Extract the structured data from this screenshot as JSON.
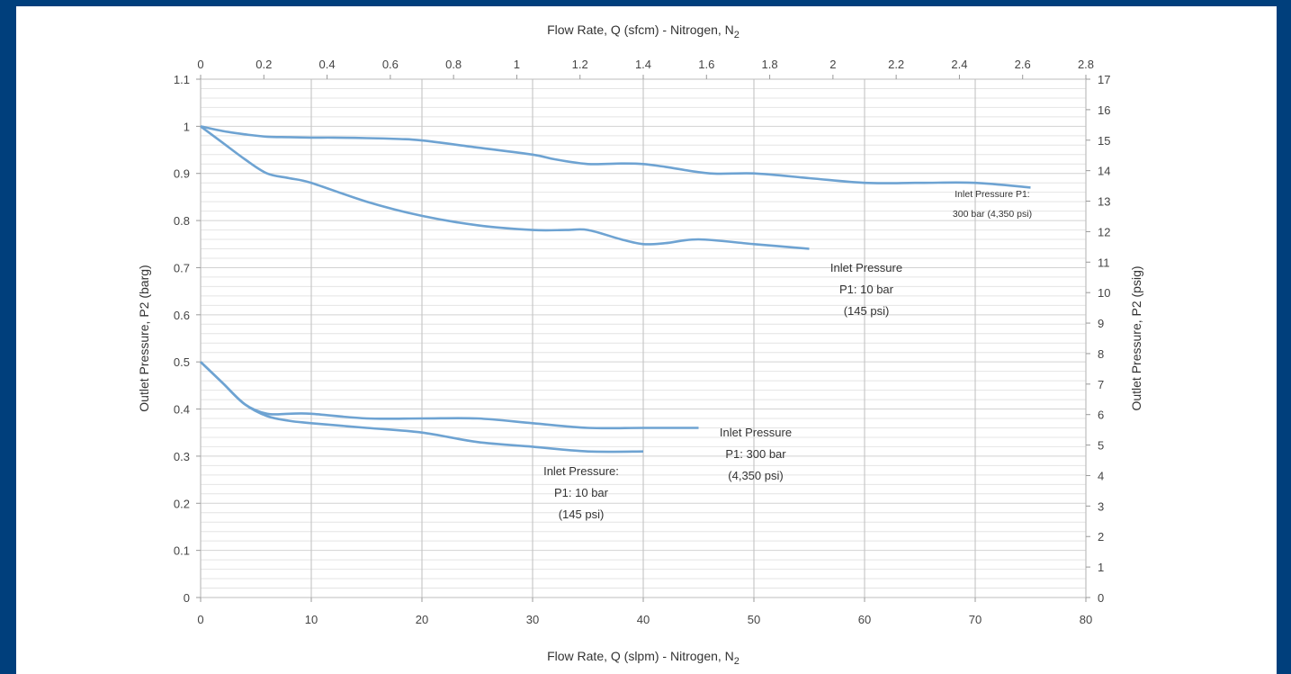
{
  "chart_data": {
    "type": "line",
    "title": "",
    "colors": {
      "background": "#003f7c",
      "series": "#6ea3d2",
      "major_grid": "#c7c7c7",
      "minor_grid": "#e4e4e4"
    },
    "x_bottom": {
      "label": "Flow Rate, Q (slpm) - Nitrogen, N",
      "label_sub": "2",
      "range": [
        0,
        80
      ],
      "ticks": [
        "0",
        "10",
        "20",
        "30",
        "40",
        "50",
        "60",
        "70",
        "80"
      ]
    },
    "x_top": {
      "label": "Flow Rate, Q (sfcm) - Nitrogen, N",
      "label_sub": "2",
      "range": [
        0,
        2.8
      ],
      "ticks": [
        "0",
        "0.2",
        "0.4",
        "0.6",
        "0.8",
        "1",
        "1.2",
        "1.4",
        "1.6",
        "1.8",
        "2",
        "2.2",
        "2.4",
        "2.6",
        "2.8"
      ]
    },
    "y_left": {
      "label": "Outlet Pressure, P2 (barg)",
      "range": [
        0,
        1.1
      ],
      "ticks": [
        "0",
        "0.1",
        "0.2",
        "0.3",
        "0.4",
        "0.5",
        "0.6",
        "0.7",
        "0.8",
        "0.9",
        "1",
        "1.1"
      ]
    },
    "y_right": {
      "label": "Outlet Pressure, P2 (psig)",
      "range": [
        0,
        17
      ],
      "ticks": [
        "0",
        "1",
        "2",
        "3",
        "4",
        "5",
        "6",
        "7",
        "8",
        "9",
        "10",
        "11",
        "12",
        "13",
        "14",
        "15",
        "16",
        "17"
      ]
    },
    "grid": true,
    "legend": "none",
    "series": [
      {
        "x": [
          0,
          2,
          4,
          6,
          8,
          10,
          12,
          15,
          18,
          20,
          25,
          30,
          32,
          35,
          38,
          40,
          42,
          46,
          50,
          55,
          60,
          65,
          70,
          75
        ],
        "y": [
          1.0,
          0.99,
          0.983,
          0.978,
          0.977,
          0.976,
          0.976,
          0.975,
          0.973,
          0.97,
          0.955,
          0.94,
          0.93,
          0.92,
          0.921,
          0.92,
          0.914,
          0.9,
          0.9,
          0.89,
          0.88,
          0.88,
          0.88,
          0.87
        ],
        "annotation": [
          "Inlet Pressure P1:",
          "300 bar (4,350 psi)"
        ]
      },
      {
        "x": [
          0,
          2,
          4,
          6,
          8,
          10,
          15,
          20,
          25,
          30,
          33,
          35,
          38,
          40,
          42,
          45,
          50,
          55
        ],
        "y": [
          1.0,
          0.965,
          0.93,
          0.9,
          0.89,
          0.88,
          0.84,
          0.81,
          0.79,
          0.78,
          0.78,
          0.78,
          0.76,
          0.75,
          0.752,
          0.76,
          0.75,
          0.74
        ],
        "annotation": [
          "Inlet Pressure",
          "P1: 10 bar",
          "(145 psi)"
        ]
      },
      {
        "x": [
          0,
          2,
          4,
          6,
          8,
          10,
          15,
          20,
          25,
          30,
          35,
          40,
          45
        ],
        "y": [
          0.5,
          0.455,
          0.41,
          0.39,
          0.39,
          0.39,
          0.38,
          0.38,
          0.38,
          0.37,
          0.36,
          0.36,
          0.36
        ],
        "annotation": [
          "Inlet Pressure",
          "P1: 300 bar",
          "(4,350 psi)"
        ]
      },
      {
        "x": [
          0,
          2,
          4,
          6,
          8,
          10,
          15,
          20,
          25,
          30,
          35,
          40
        ],
        "y": [
          0.5,
          0.455,
          0.41,
          0.385,
          0.375,
          0.37,
          0.36,
          0.35,
          0.33,
          0.32,
          0.31,
          0.31
        ],
        "annotation": [
          "Inlet Pressure:",
          "P1: 10 bar",
          "(145 psi)"
        ]
      }
    ]
  }
}
